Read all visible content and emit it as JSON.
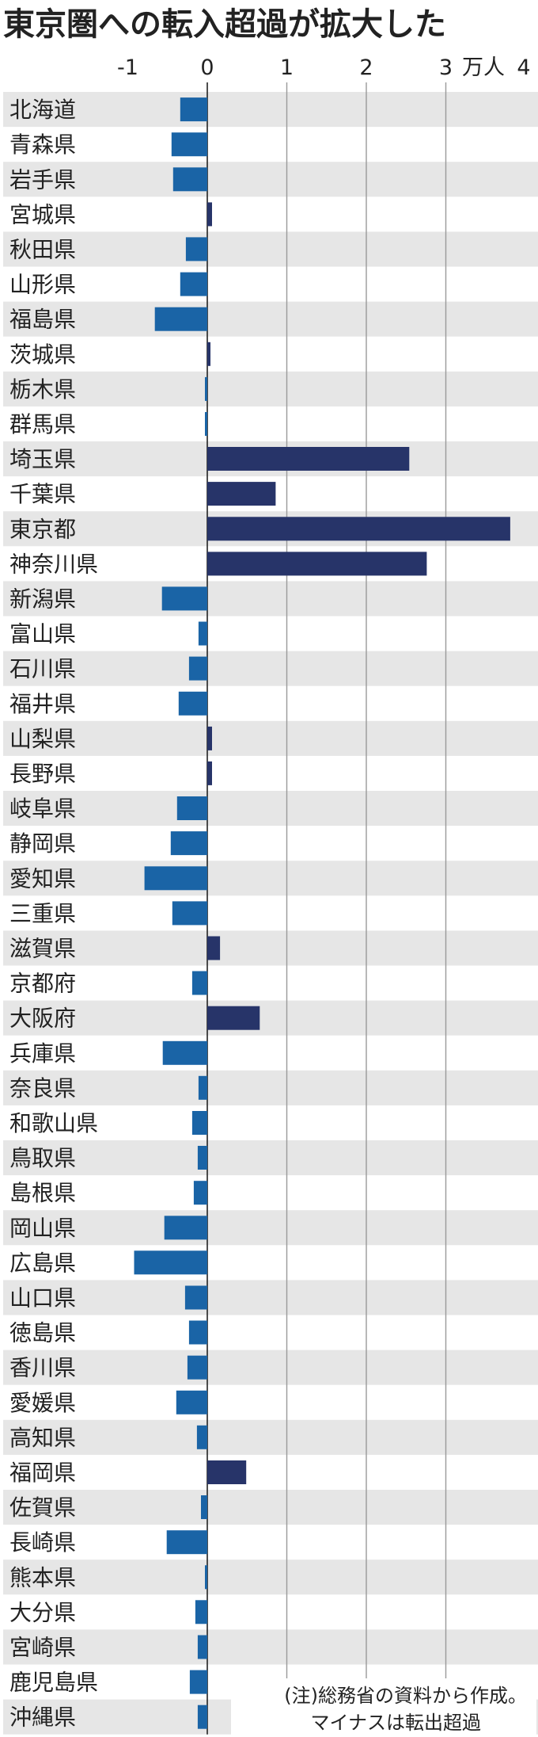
{
  "chart_data": {
    "type": "bar",
    "orientation": "horizontal",
    "title": "東京圏への転入超過が拡大した",
    "unit_label": "万人",
    "xlim": [
      -1,
      4
    ],
    "x_ticks": [
      "-1",
      "0",
      "1",
      "2",
      "3",
      "4"
    ],
    "grid": true,
    "categories": [
      "北海道",
      "青森県",
      "岩手県",
      "宮城県",
      "秋田県",
      "山形県",
      "福島県",
      "茨城県",
      "栃木県",
      "群馬県",
      "埼玉県",
      "千葉県",
      "東京都",
      "神奈川県",
      "新潟県",
      "富山県",
      "石川県",
      "福井県",
      "山梨県",
      "長野県",
      "岐阜県",
      "静岡県",
      "愛知県",
      "三重県",
      "滋賀県",
      "京都府",
      "大阪府",
      "兵庫県",
      "奈良県",
      "和歌山県",
      "鳥取県",
      "島根県",
      "岡山県",
      "広島県",
      "山口県",
      "徳島県",
      "香川県",
      "愛媛県",
      "高知県",
      "福岡県",
      "佐賀県",
      "長崎県",
      "熊本県",
      "大分県",
      "宮崎県",
      "鹿児島県",
      "沖縄県"
    ],
    "values": [
      -0.34,
      -0.45,
      -0.43,
      0.06,
      -0.27,
      -0.34,
      -0.66,
      0.04,
      -0.03,
      -0.03,
      2.54,
      0.86,
      3.81,
      2.76,
      -0.57,
      -0.11,
      -0.23,
      -0.36,
      0.06,
      0.06,
      -0.38,
      -0.46,
      -0.79,
      -0.44,
      0.16,
      -0.19,
      0.66,
      -0.56,
      -0.11,
      -0.19,
      -0.12,
      -0.17,
      -0.54,
      -0.92,
      -0.28,
      -0.23,
      -0.25,
      -0.39,
      -0.13,
      0.49,
      -0.08,
      -0.51,
      -0.03,
      -0.15,
      -0.12,
      -0.22,
      -0.12
    ],
    "colors": {
      "positive": "#273469",
      "negative": "#1a64a6",
      "stripe": "#e6e6e6",
      "grid": "#9a9a9a",
      "axis": "#222222"
    },
    "note_lines": [
      "(注)総務省の資料から作成。",
      "マイナスは転出超過"
    ]
  }
}
